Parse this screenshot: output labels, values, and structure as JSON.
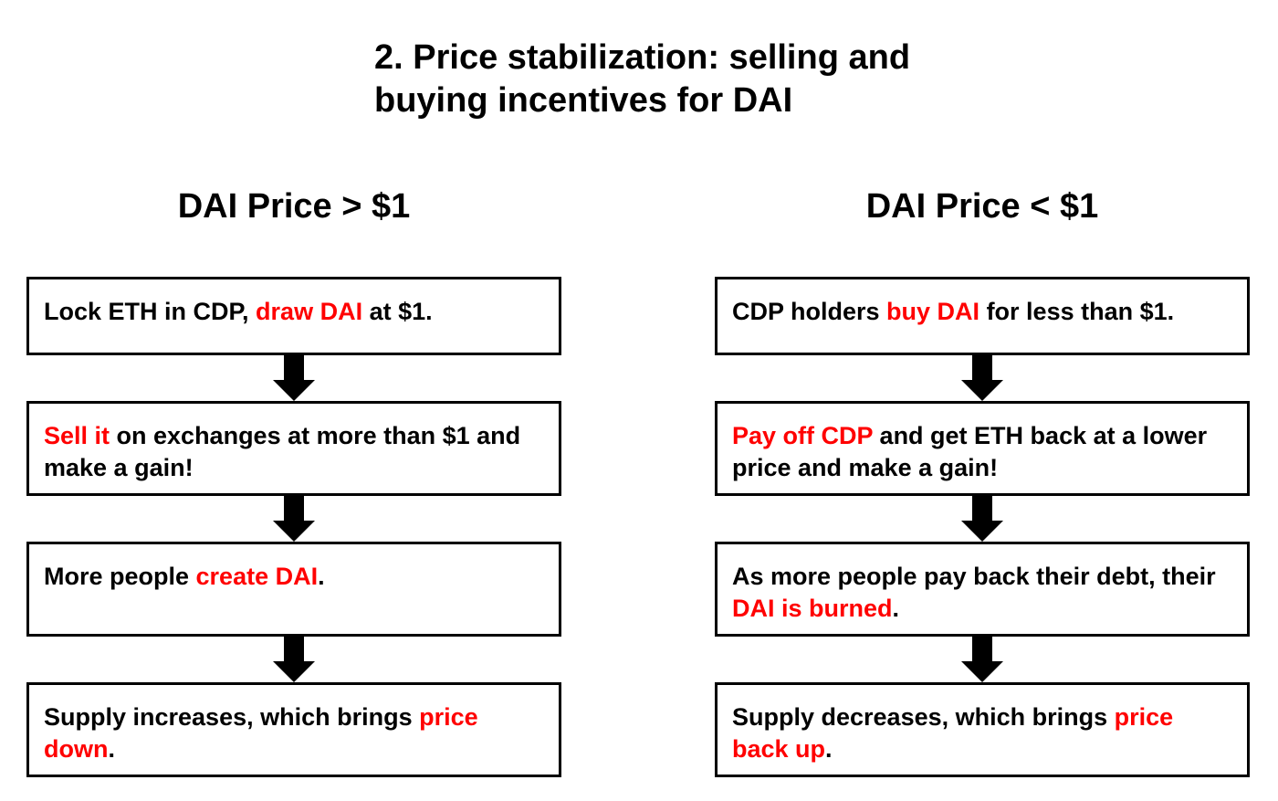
{
  "title": {
    "line1": "2. Price stabilization: selling and",
    "line2": "buying incentives for DAI"
  },
  "colors": {
    "highlight": "#ff0000",
    "text": "#000000",
    "border": "#000000"
  },
  "left_column": {
    "heading": "DAI Price > $1",
    "steps": [
      {
        "pre": "Lock ETH in CDP, ",
        "highlight": "draw DAI",
        "post": " at $1."
      },
      {
        "pre": "",
        "highlight": "Sell it",
        "post": " on exchanges at more than $1 and make a gain!"
      },
      {
        "pre": "More people ",
        "highlight": "create DAI",
        "post": "."
      },
      {
        "pre": "Supply increases, which brings ",
        "highlight": "price down",
        "post": "."
      }
    ]
  },
  "right_column": {
    "heading": "DAI Price < $1",
    "steps": [
      {
        "pre": "CDP holders ",
        "highlight": "buy DAI",
        "post": " for less than $1."
      },
      {
        "pre": "",
        "highlight": "Pay off CDP",
        "post": " and get ETH back at a lower price and make a gain!"
      },
      {
        "pre": "As more people pay back their debt, their ",
        "highlight": "DAI is burned",
        "post": "."
      },
      {
        "pre": "Supply decreases, which brings ",
        "highlight": "price back up",
        "post": "."
      }
    ]
  },
  "arrow_icon": "down-arrow-icon"
}
